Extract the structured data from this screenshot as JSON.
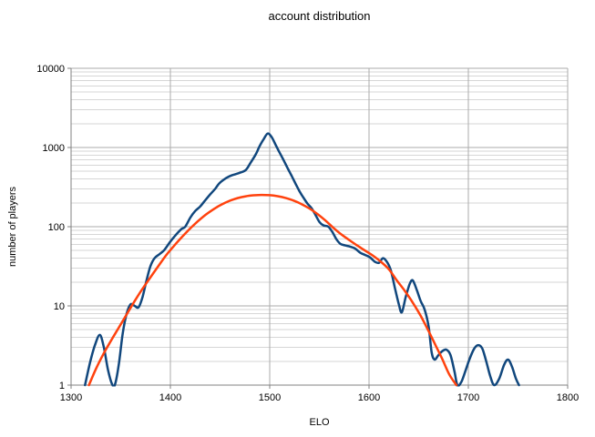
{
  "chart": {
    "title": "account distribution",
    "x_axis_title": "ELO",
    "y_axis_title": "number of players"
  },
  "chart_data": {
    "type": "line",
    "title": "account distribution",
    "xlabel": "ELO",
    "ylabel": "number of players",
    "legend": "none",
    "x_axis": {
      "min": 1300,
      "max": 1800,
      "ticks": [
        1300,
        1400,
        1500,
        1600,
        1700,
        1800
      ]
    },
    "y_axis": {
      "scale": "log",
      "min": 1,
      "max": 10000,
      "ticks": [
        1,
        10,
        100,
        1000,
        10000
      ],
      "minor_gridlines": true
    },
    "grid": {
      "minor_color": "#d6d6d6",
      "major_color": "#ababab",
      "axis_color": "#808080"
    },
    "series": [
      {
        "name": "blue-line",
        "color": "#11477d",
        "points": [
          [
            1314,
            1
          ],
          [
            1319,
            1.9
          ],
          [
            1324,
            3.2
          ],
          [
            1329,
            4.3
          ],
          [
            1333,
            3
          ],
          [
            1337,
            1.6
          ],
          [
            1341,
            1.05
          ],
          [
            1344,
            1
          ],
          [
            1348,
            1.8
          ],
          [
            1352,
            4.5
          ],
          [
            1356,
            8
          ],
          [
            1360,
            10.5
          ],
          [
            1364,
            10
          ],
          [
            1368,
            9.6
          ],
          [
            1372,
            13
          ],
          [
            1376,
            21
          ],
          [
            1380,
            32
          ],
          [
            1384,
            40
          ],
          [
            1389,
            45
          ],
          [
            1394,
            51
          ],
          [
            1400,
            65
          ],
          [
            1406,
            80
          ],
          [
            1411,
            93
          ],
          [
            1415,
            100
          ],
          [
            1420,
            130
          ],
          [
            1425,
            158
          ],
          [
            1430,
            180
          ],
          [
            1435,
            215
          ],
          [
            1440,
            255
          ],
          [
            1445,
            300
          ],
          [
            1449,
            350
          ],
          [
            1454,
            395
          ],
          [
            1459,
            430
          ],
          [
            1464,
            455
          ],
          [
            1470,
            480
          ],
          [
            1476,
            520
          ],
          [
            1481,
            650
          ],
          [
            1486,
            820
          ],
          [
            1490,
            1050
          ],
          [
            1494,
            1280
          ],
          [
            1498,
            1500
          ],
          [
            1502,
            1350
          ],
          [
            1506,
            1080
          ],
          [
            1510,
            860
          ],
          [
            1514,
            690
          ],
          [
            1518,
            550
          ],
          [
            1522,
            440
          ],
          [
            1526,
            350
          ],
          [
            1530,
            280
          ],
          [
            1534,
            232
          ],
          [
            1538,
            196
          ],
          [
            1542,
            172
          ],
          [
            1546,
            142
          ],
          [
            1550,
            115
          ],
          [
            1554,
            104
          ],
          [
            1559,
            100
          ],
          [
            1563,
            86
          ],
          [
            1567,
            70
          ],
          [
            1571,
            61
          ],
          [
            1576,
            58
          ],
          [
            1581,
            56
          ],
          [
            1586,
            53
          ],
          [
            1591,
            47
          ],
          [
            1596,
            44
          ],
          [
            1601,
            41
          ],
          [
            1606,
            36
          ],
          [
            1610,
            35
          ],
          [
            1614,
            40
          ],
          [
            1618,
            36
          ],
          [
            1622,
            28
          ],
          [
            1626,
            17
          ],
          [
            1630,
            10.5
          ],
          [
            1633,
            8.3
          ],
          [
            1637,
            13
          ],
          [
            1641,
            19
          ],
          [
            1644,
            21
          ],
          [
            1648,
            16
          ],
          [
            1652,
            11.5
          ],
          [
            1656,
            9
          ],
          [
            1660,
            5.5
          ],
          [
            1663,
            2.6
          ],
          [
            1666,
            2.1
          ],
          [
            1670,
            2.4
          ],
          [
            1674,
            2.7
          ],
          [
            1678,
            2.8
          ],
          [
            1682,
            2.4
          ],
          [
            1686,
            1.5
          ],
          [
            1689,
            1
          ],
          [
            1693,
            1.1
          ],
          [
            1697,
            1.5
          ],
          [
            1701,
            2.1
          ],
          [
            1706,
            2.9
          ],
          [
            1710,
            3.2
          ],
          [
            1714,
            2.9
          ],
          [
            1718,
            2
          ],
          [
            1722,
            1.3
          ],
          [
            1726,
            1
          ],
          [
            1731,
            1.2
          ],
          [
            1736,
            1.8
          ],
          [
            1740,
            2.1
          ],
          [
            1744,
            1.7
          ],
          [
            1748,
            1.2
          ],
          [
            1751,
            1
          ]
        ]
      },
      {
        "name": "orange-line",
        "color": "#ff420e",
        "points": [
          [
            1318,
            1
          ],
          [
            1325,
            1.6
          ],
          [
            1332,
            2.4
          ],
          [
            1340,
            3.6
          ],
          [
            1348,
            5.3
          ],
          [
            1356,
            7.8
          ],
          [
            1364,
            11.5
          ],
          [
            1372,
            16.5
          ],
          [
            1380,
            23
          ],
          [
            1388,
            32
          ],
          [
            1396,
            44
          ],
          [
            1404,
            58
          ],
          [
            1412,
            75
          ],
          [
            1420,
            95
          ],
          [
            1428,
            118
          ],
          [
            1436,
            143
          ],
          [
            1444,
            168
          ],
          [
            1452,
            192
          ],
          [
            1460,
            213
          ],
          [
            1468,
            230
          ],
          [
            1476,
            242
          ],
          [
            1484,
            249
          ],
          [
            1492,
            252
          ],
          [
            1500,
            250
          ],
          [
            1508,
            243
          ],
          [
            1516,
            231
          ],
          [
            1524,
            214
          ],
          [
            1532,
            193
          ],
          [
            1540,
            170
          ],
          [
            1548,
            145
          ],
          [
            1556,
            120
          ],
          [
            1564,
            97
          ],
          [
            1572,
            80
          ],
          [
            1580,
            68
          ],
          [
            1588,
            58
          ],
          [
            1596,
            50
          ],
          [
            1604,
            43
          ],
          [
            1612,
            36
          ],
          [
            1620,
            29
          ],
          [
            1628,
            21
          ],
          [
            1636,
            15.5
          ],
          [
            1644,
            11
          ],
          [
            1652,
            7.5
          ],
          [
            1660,
            4.8
          ],
          [
            1668,
            3
          ],
          [
            1674,
            2.1
          ],
          [
            1681,
            1.35
          ],
          [
            1688,
            1
          ]
        ]
      }
    ]
  }
}
